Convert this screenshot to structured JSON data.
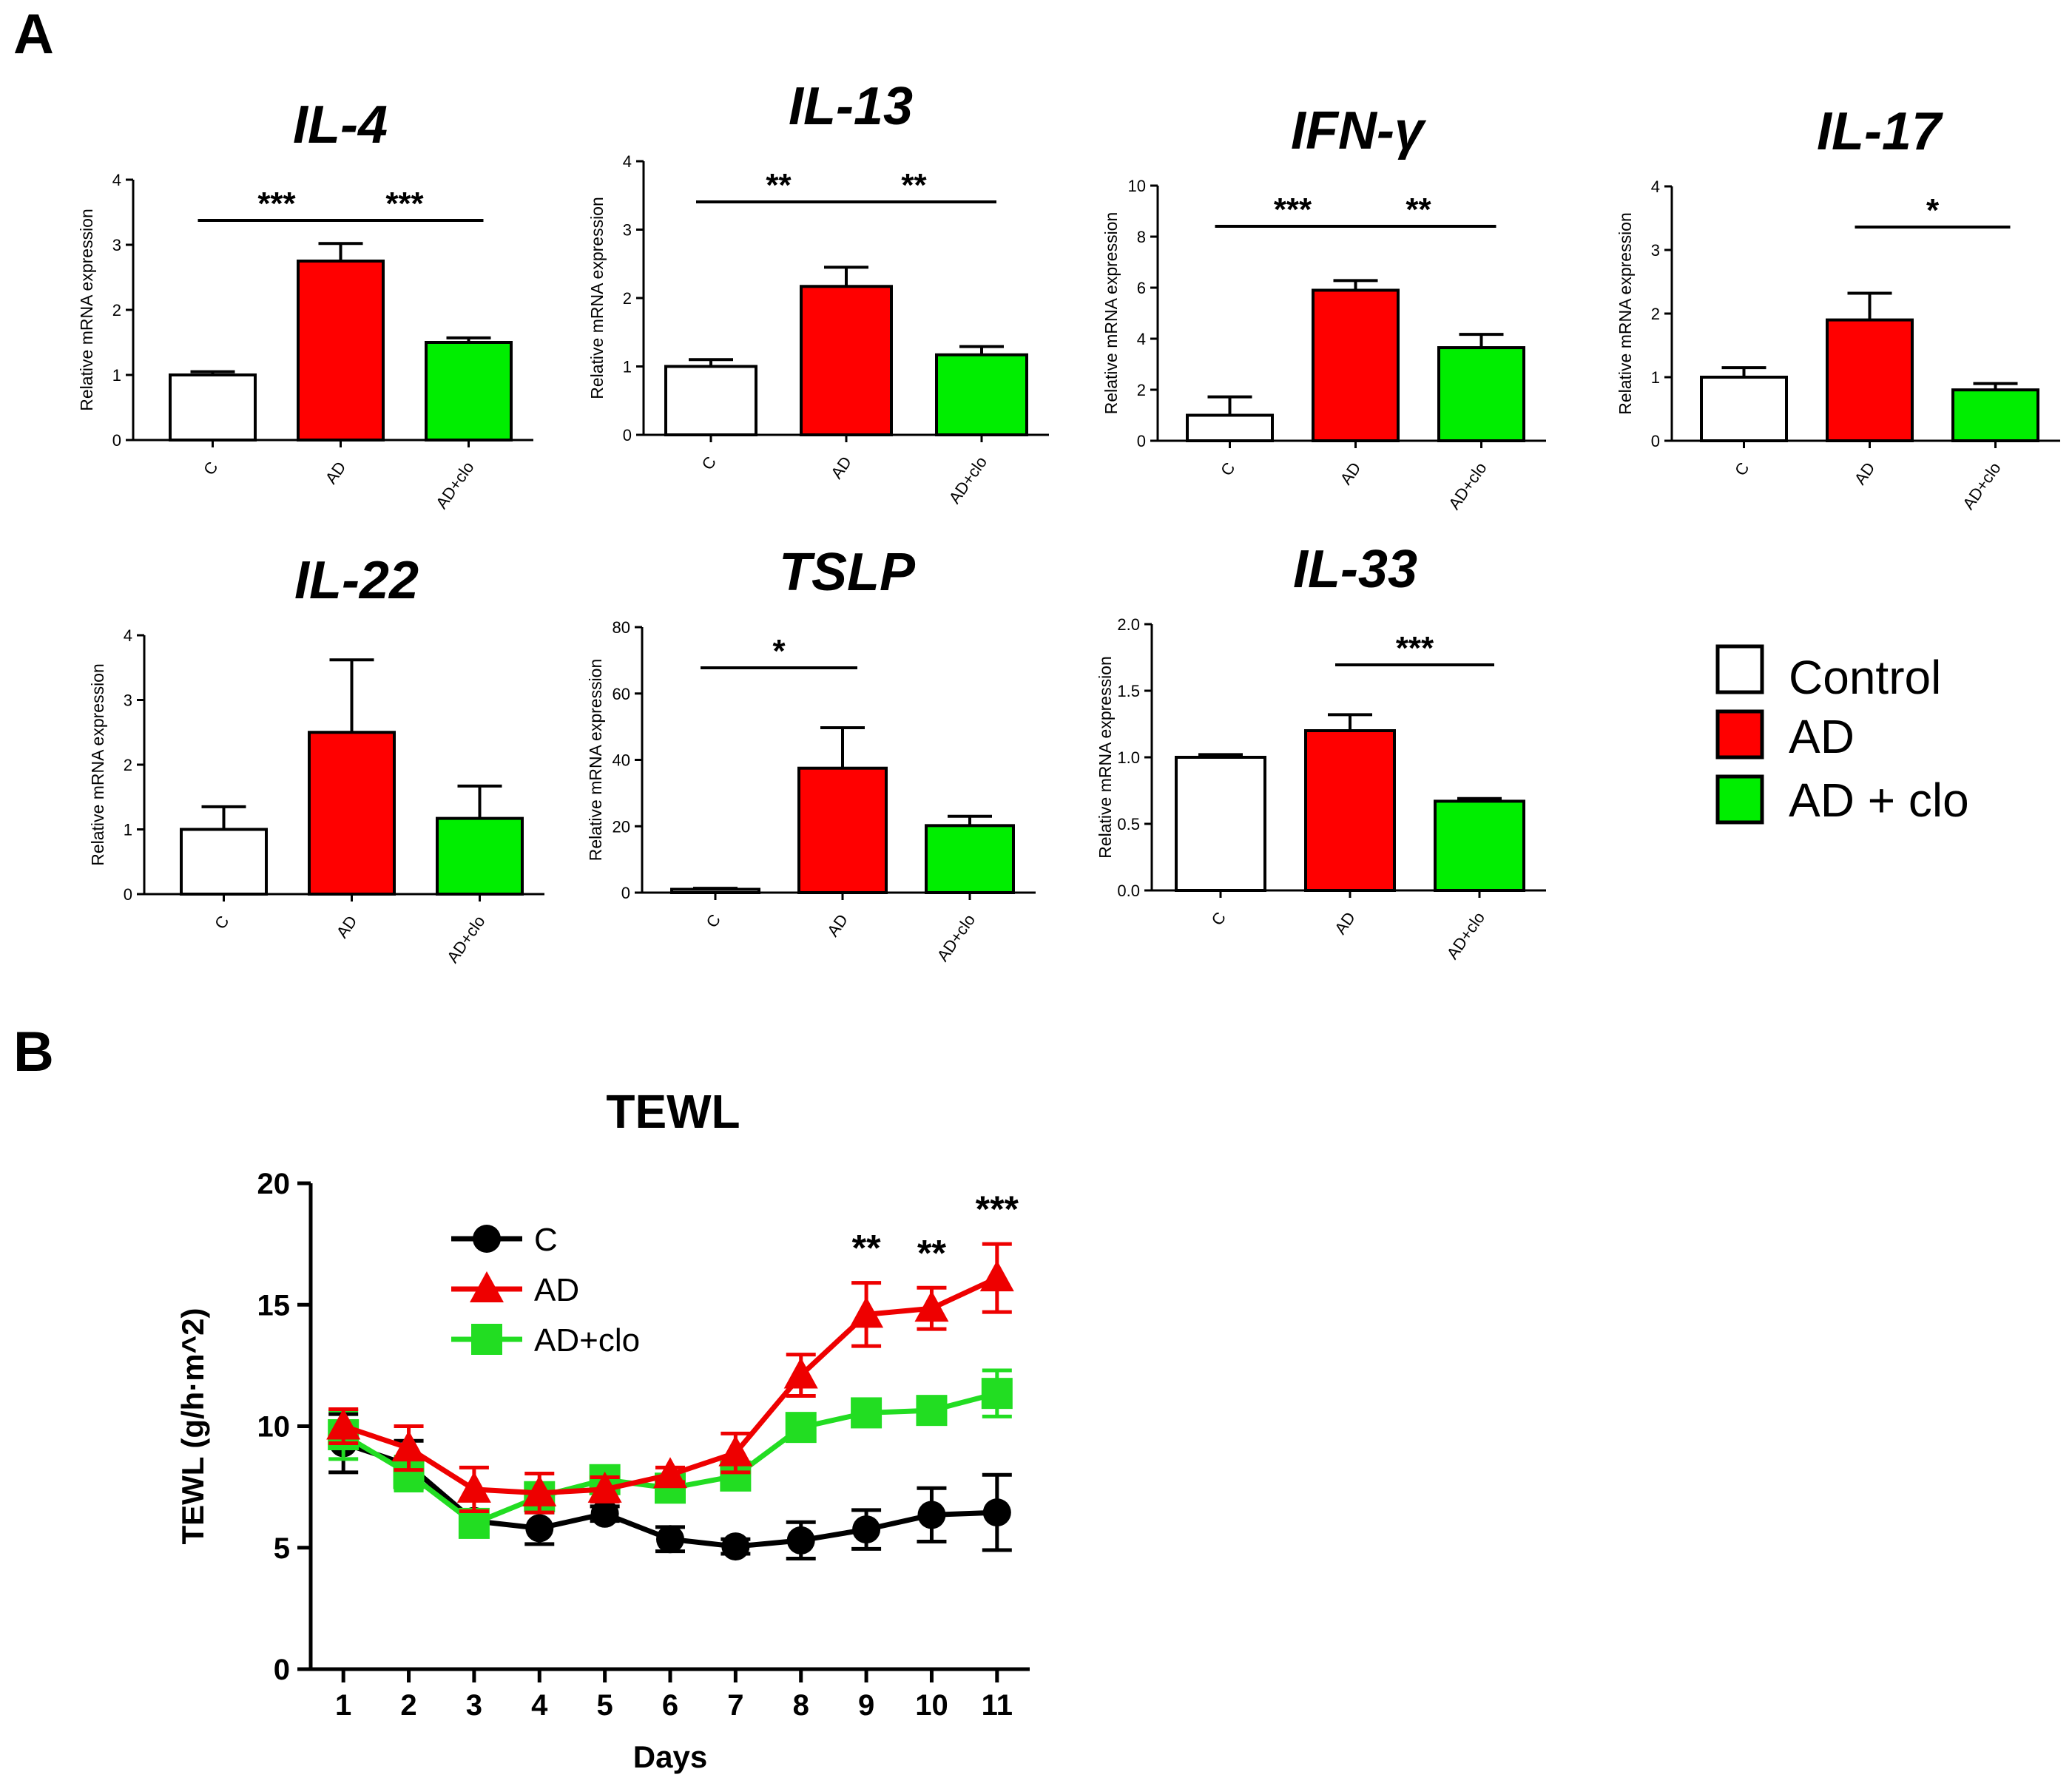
{
  "panels": {
    "a": "A",
    "b": "B"
  },
  "colors": {
    "control": "#ffffff",
    "ad": "#ff0000",
    "adclo": "#00ee00",
    "c_line": "#000000",
    "ad_line": "#ee0000",
    "adclo_line": "#22dd22"
  },
  "bar_legend": [
    "Control",
    "AD",
    "AD + clo"
  ],
  "chart_data": [
    {
      "type": "bar",
      "title": "IL-4",
      "ylabel": "Relative mRNA expression",
      "categories": [
        "C",
        "AD",
        "AD+clo"
      ],
      "values": [
        1.0,
        2.75,
        1.5
      ],
      "errors": [
        0.05,
        0.27,
        0.07
      ],
      "ylim": [
        0,
        4
      ],
      "ticks": [
        "0",
        "1",
        "2",
        "3",
        "4"
      ],
      "significance": [
        {
          "from": 0,
          "to": 1,
          "label": "***"
        },
        {
          "from": 1,
          "to": 2,
          "label": "***"
        }
      ]
    },
    {
      "type": "bar",
      "title": "IL-13",
      "ylabel": "Relative mRNA expression",
      "categories": [
        "C",
        "AD",
        "AD+clo"
      ],
      "values": [
        1.0,
        2.17,
        1.17
      ],
      "errors": [
        0.1,
        0.28,
        0.12
      ],
      "ylim": [
        0,
        4
      ],
      "ticks": [
        "0",
        "1",
        "2",
        "3",
        "4"
      ],
      "significance": [
        {
          "from": 0,
          "to": 1,
          "label": "**"
        },
        {
          "from": 1,
          "to": 2,
          "label": "**"
        }
      ]
    },
    {
      "type": "bar",
      "title": "IFN-γ",
      "ylabel": "Relative mRNA expression",
      "categories": [
        "C",
        "AD",
        "AD+clo"
      ],
      "values": [
        1.0,
        5.9,
        3.65
      ],
      "errors": [
        0.72,
        0.38,
        0.52
      ],
      "ylim": [
        0,
        10
      ],
      "ticks": [
        "0",
        "2",
        "4",
        "6",
        "8",
        "10"
      ],
      "significance": [
        {
          "from": 0,
          "to": 1,
          "label": "***"
        },
        {
          "from": 1,
          "to": 2,
          "label": "**"
        }
      ]
    },
    {
      "type": "bar",
      "title": "IL-17",
      "ylabel": "Relative mRNA expression",
      "categories": [
        "C",
        "AD",
        "AD+clo"
      ],
      "values": [
        1.0,
        1.9,
        0.8
      ],
      "errors": [
        0.15,
        0.42,
        0.1
      ],
      "ylim": [
        0,
        4
      ],
      "ticks": [
        "0",
        "1",
        "2",
        "3",
        "4"
      ],
      "significance": [
        {
          "from": 1,
          "to": 2,
          "label": "*"
        }
      ]
    },
    {
      "type": "bar",
      "title": "IL-22",
      "ylabel": "Relative mRNA expression",
      "categories": [
        "C",
        "AD",
        "AD+clo"
      ],
      "values": [
        1.0,
        2.5,
        1.17
      ],
      "errors": [
        0.35,
        1.12,
        0.5
      ],
      "ylim": [
        0,
        4
      ],
      "ticks": [
        "0",
        "1",
        "2",
        "3",
        "4"
      ],
      "significance": []
    },
    {
      "type": "bar",
      "title": "TSLP",
      "ylabel": "Relative mRNA expression",
      "categories": [
        "C",
        "AD",
        "AD+clo"
      ],
      "values": [
        1.0,
        37.5,
        20.2
      ],
      "errors": [
        0.3,
        12.2,
        2.8
      ],
      "ylim": [
        0,
        80
      ],
      "ticks": [
        "0",
        "20",
        "40",
        "60",
        "80"
      ],
      "significance": [
        {
          "from": 0,
          "to": 1,
          "label": "*"
        }
      ]
    },
    {
      "type": "bar",
      "title": "IL-33",
      "ylabel": "Relative mRNA expression",
      "categories": [
        "C",
        "AD",
        "AD+clo"
      ],
      "values": [
        1.0,
        1.2,
        0.67
      ],
      "errors": [
        0.02,
        0.12,
        0.02
      ],
      "ylim": [
        0,
        2
      ],
      "ticks": [
        "0.0",
        "0.5",
        "1.0",
        "1.5",
        "2.0"
      ],
      "significance": [
        {
          "from": 1,
          "to": 2,
          "label": "***"
        }
      ]
    },
    {
      "type": "line",
      "title": "TEWL",
      "xlabel": "Days",
      "ylabel": "TEWL (g/h·m^2)",
      "x": [
        1,
        2,
        3,
        4,
        5,
        6,
        7,
        8,
        9,
        10,
        11
      ],
      "xlim": [
        0.5,
        11.5
      ],
      "ylim": [
        0,
        20
      ],
      "yticks": [
        0,
        5,
        10,
        15,
        20
      ],
      "series": [
        {
          "name": "C",
          "marker": "circle",
          "values": [
            9.3,
            8.4,
            6.1,
            5.8,
            6.4,
            5.35,
            5.05,
            5.3,
            5.75,
            6.35,
            6.45
          ],
          "errors": [
            1.2,
            1.0,
            0.4,
            0.65,
            0.3,
            0.5,
            0.3,
            0.75,
            0.8,
            1.1,
            1.55
          ]
        },
        {
          "name": "AD",
          "marker": "triangle",
          "values": [
            10.0,
            9.1,
            7.4,
            7.25,
            7.4,
            8.0,
            8.9,
            12.1,
            14.6,
            14.85,
            16.1
          ],
          "errors": [
            0.7,
            0.9,
            0.9,
            0.8,
            0.5,
            0.3,
            0.8,
            0.85,
            1.3,
            0.85,
            1.4
          ]
        },
        {
          "name": "AD+clo",
          "marker": "square",
          "values": [
            9.65,
            8.05,
            6.0,
            7.1,
            7.8,
            7.45,
            7.95,
            9.95,
            10.55,
            10.65,
            11.35
          ],
          "errors": [
            1.0,
            0.7,
            0.5,
            0.45,
            0.3,
            0.3,
            0.4,
            0.35,
            0.4,
            0.4,
            0.95
          ]
        }
      ],
      "significance": [
        {
          "x": 9,
          "label": "**"
        },
        {
          "x": 10,
          "label": "**"
        },
        {
          "x": 11,
          "label": "***"
        }
      ]
    }
  ]
}
